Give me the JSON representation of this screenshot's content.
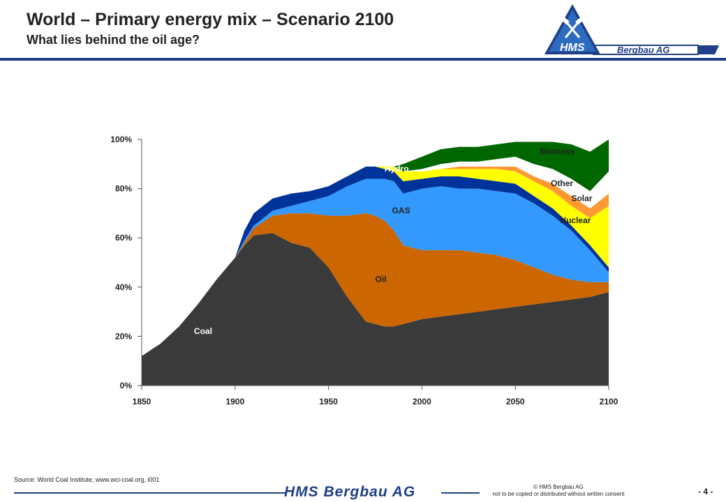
{
  "header": {
    "title": "World – Primary energy mix – Scenario 2100",
    "subtitle": "What lies behind the oil age?"
  },
  "logo": {
    "mark": "HMS",
    "wordmark": "Bergbau AG"
  },
  "colors": {
    "coal": "#3a3a3a",
    "oil": "#cc6600",
    "gas": "#3399ff",
    "hydro": "#003399",
    "nuclear": "#ffff00",
    "solar": "#ff9933",
    "other": "#ffffff",
    "biomass": "#006600",
    "brand": "#1f3f86"
  },
  "chart_data": {
    "type": "area",
    "stacked": true,
    "x": [
      1850,
      1860,
      1870,
      1880,
      1890,
      1900,
      1905,
      1910,
      1920,
      1930,
      1940,
      1950,
      1955,
      1960,
      1970,
      1975,
      1980,
      1985,
      1990,
      2000,
      2010,
      2020,
      2030,
      2040,
      2050,
      2060,
      2070,
      2080,
      2090,
      2100
    ],
    "series": [
      {
        "name": "Coal",
        "key": "coal",
        "values": [
          12,
          17,
          24,
          33,
          43,
          52,
          57,
          61,
          62,
          58,
          56,
          48,
          42,
          36,
          26,
          25,
          24,
          24,
          25,
          27,
          28,
          29,
          30,
          31,
          32,
          33,
          34,
          35,
          36,
          38
        ]
      },
      {
        "name": "Oil",
        "key": "oil",
        "values": [
          0,
          0,
          0,
          0,
          0,
          0,
          1,
          3,
          7,
          12,
          14,
          21,
          27,
          33,
          44,
          44,
          43,
          39,
          32,
          28,
          27,
          26,
          24,
          22,
          19,
          15,
          11,
          8,
          6,
          4
        ]
      },
      {
        "name": "GAS",
        "key": "gas",
        "values": [
          0,
          0,
          0,
          0,
          0,
          0,
          1,
          1,
          2,
          3,
          5,
          8,
          10,
          12,
          14,
          15,
          17,
          20,
          21,
          25,
          26,
          25,
          26,
          26,
          27,
          26,
          24,
          20,
          13,
          4
        ]
      },
      {
        "name": "Hydro",
        "key": "hydro",
        "values": [
          0,
          0,
          0,
          0,
          0,
          0,
          4,
          5,
          5,
          5,
          4,
          4,
          4,
          4,
          5,
          5,
          4,
          4,
          5,
          4,
          4,
          5,
          4,
          4,
          4,
          3,
          3,
          2,
          2,
          2
        ]
      },
      {
        "name": "Nuclear",
        "key": "nuclear",
        "values": [
          0,
          0,
          0,
          0,
          0,
          0,
          0,
          0,
          0,
          0,
          0,
          0,
          0,
          0,
          0,
          0,
          1,
          2,
          4,
          3,
          3,
          3,
          4,
          5,
          5,
          6,
          7,
          8,
          11,
          25
        ]
      },
      {
        "name": "Solar",
        "key": "solar",
        "values": [
          0,
          0,
          0,
          0,
          0,
          0,
          0,
          0,
          0,
          0,
          0,
          0,
          0,
          0,
          0,
          0,
          0,
          0,
          0,
          0,
          0,
          1,
          1,
          1,
          2,
          2,
          3,
          4,
          4,
          5
        ]
      },
      {
        "name": "Other",
        "key": "other",
        "values": [
          0,
          0,
          0,
          0,
          0,
          0,
          0,
          0,
          0,
          0,
          0,
          0,
          0,
          0,
          0,
          0,
          0,
          0,
          0,
          1,
          2,
          2,
          2,
          3,
          4,
          5,
          6,
          7,
          7,
          9
        ]
      },
      {
        "name": "Biomass",
        "key": "biomass",
        "values": [
          0,
          0,
          0,
          0,
          0,
          0,
          0,
          0,
          0,
          0,
          0,
          0,
          0,
          0,
          0,
          0,
          0,
          0,
          3,
          5,
          6,
          6,
          6,
          6,
          6,
          9,
          11,
          14,
          16,
          13
        ]
      }
    ],
    "xlim": [
      1850,
      2100
    ],
    "ylim": [
      0,
      100
    ],
    "xticks": [
      1850,
      1900,
      1950,
      2000,
      2050,
      2100
    ],
    "yticks": [
      0,
      20,
      40,
      60,
      80,
      100
    ],
    "ytick_labels": [
      "0%",
      "20%",
      "40%",
      "60%",
      "80%",
      "100%"
    ],
    "annotations": [
      {
        "text": "Coal",
        "x": 1878,
        "y": 21,
        "color": "#ffffff"
      },
      {
        "text": "Oil",
        "x": 1975,
        "y": 42,
        "color": "#222222"
      },
      {
        "text": "GAS",
        "x": 1984,
        "y": 70,
        "color": "#222222"
      },
      {
        "text": "Hydro",
        "x": 1980,
        "y": 87,
        "color": "#ffffff"
      },
      {
        "text": "Biomass",
        "x": 2063,
        "y": 94,
        "color": "#222222"
      },
      {
        "text": "Other",
        "x": 2069,
        "y": 81,
        "color": "#222222"
      },
      {
        "text": "Solar",
        "x": 2080,
        "y": 75,
        "color": "#222222"
      },
      {
        "text": "Nuclear",
        "x": 2074,
        "y": 66,
        "color": "#222222"
      }
    ]
  },
  "footer": {
    "source": "Source: World Coal Institute, www.wci-coal.org, i001",
    "brand": "HMS Bergbau AG",
    "copyright_line1": "© HMS Bergbau AG",
    "copyright_line2": "not to be copied or distributed without written consent",
    "page_number": "- 4 -"
  }
}
